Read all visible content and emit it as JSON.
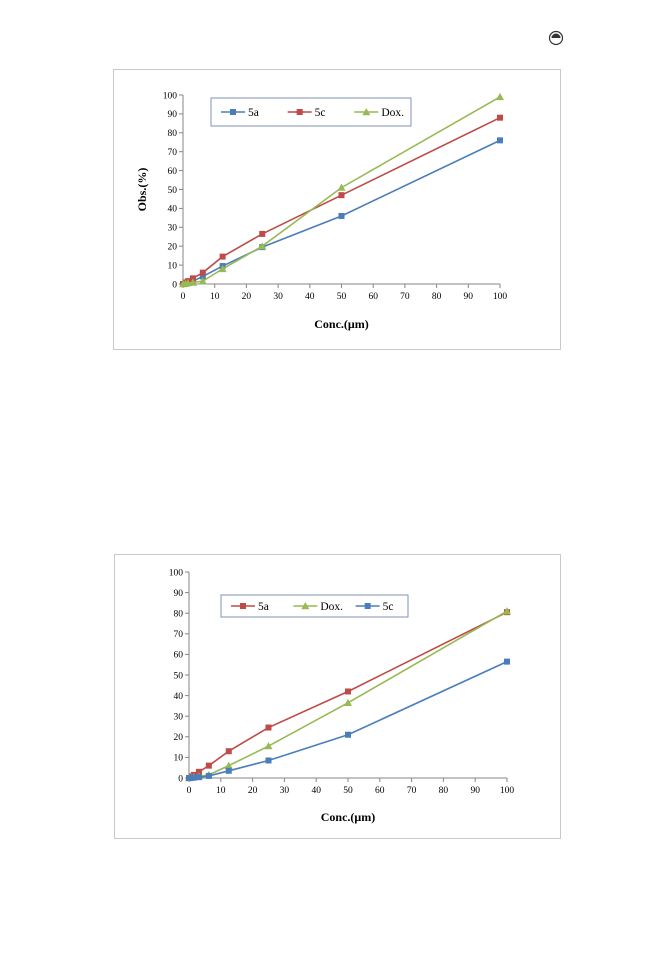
{
  "page": {
    "corner_icon": "radio-button-icon"
  },
  "chart_data": [
    {
      "type": "line",
      "title": "",
      "xlabel": "Conc.(μm)",
      "ylabel": "Obs.(%)",
      "xlim": [
        0,
        100
      ],
      "ylim": [
        0,
        100
      ],
      "xticks": [
        0,
        10,
        20,
        30,
        40,
        50,
        60,
        70,
        80,
        90,
        100
      ],
      "yticks": [
        0,
        10,
        20,
        30,
        40,
        50,
        60,
        70,
        80,
        90,
        100
      ],
      "grid": false,
      "legend": "top-left, boxed",
      "series": [
        {
          "name": "5a",
          "color": "#4a7ebb",
          "marker": "square",
          "x": [
            0,
            0.78,
            1.56,
            3.12,
            6.25,
            12.5,
            25,
            50,
            100
          ],
          "y": [
            0,
            0.4,
            0.8,
            1.5,
            4,
            9.5,
            19.5,
            36,
            76
          ]
        },
        {
          "name": "5c",
          "color": "#be4b48",
          "marker": "square",
          "x": [
            0,
            0.78,
            1.56,
            3.12,
            6.25,
            12.5,
            25,
            50,
            100
          ],
          "y": [
            0,
            0.8,
            1.5,
            3,
            6,
            14.5,
            26.5,
            47,
            88
          ]
        },
        {
          "name": "Dox.",
          "color": "#98b954",
          "marker": "triangle",
          "x": [
            0,
            0.78,
            1.56,
            3.12,
            6.25,
            12.5,
            25,
            50,
            100
          ],
          "y": [
            0,
            0.2,
            0.5,
            0.8,
            1.5,
            8,
            20,
            51,
            99
          ]
        }
      ]
    },
    {
      "type": "line",
      "title": "",
      "xlabel": "Conc.(μm)",
      "ylabel": "",
      "xlim": [
        0,
        100
      ],
      "ylim": [
        0,
        100
      ],
      "xticks": [
        0,
        10,
        20,
        30,
        40,
        50,
        60,
        70,
        80,
        90,
        100
      ],
      "yticks": [
        0,
        10,
        20,
        30,
        40,
        50,
        60,
        70,
        80,
        90,
        100
      ],
      "grid": false,
      "legend": "top-left, boxed",
      "series": [
        {
          "name": "5a",
          "color": "#be4b48",
          "marker": "square",
          "x": [
            0,
            0.78,
            1.56,
            3.12,
            6.25,
            12.5,
            25,
            50,
            100
          ],
          "y": [
            0,
            0.8,
            1.5,
            3,
            6,
            13,
            24.5,
            42,
            80.5
          ]
        },
        {
          "name": "Dox.",
          "color": "#98b954",
          "marker": "triangle",
          "x": [
            0,
            0.78,
            1.56,
            3.12,
            6.25,
            12.5,
            25,
            50,
            100
          ],
          "y": [
            0,
            0.2,
            0.5,
            0.8,
            1.5,
            6,
            15.5,
            36.5,
            81
          ]
        },
        {
          "name": "5c",
          "color": "#4a7ebb",
          "marker": "square",
          "x": [
            0,
            0.78,
            1.56,
            3.12,
            6.25,
            12.5,
            25,
            50,
            100
          ],
          "y": [
            0,
            0.1,
            0.2,
            0.4,
            1,
            3.5,
            8.5,
            21,
            56.5
          ]
        }
      ]
    }
  ]
}
